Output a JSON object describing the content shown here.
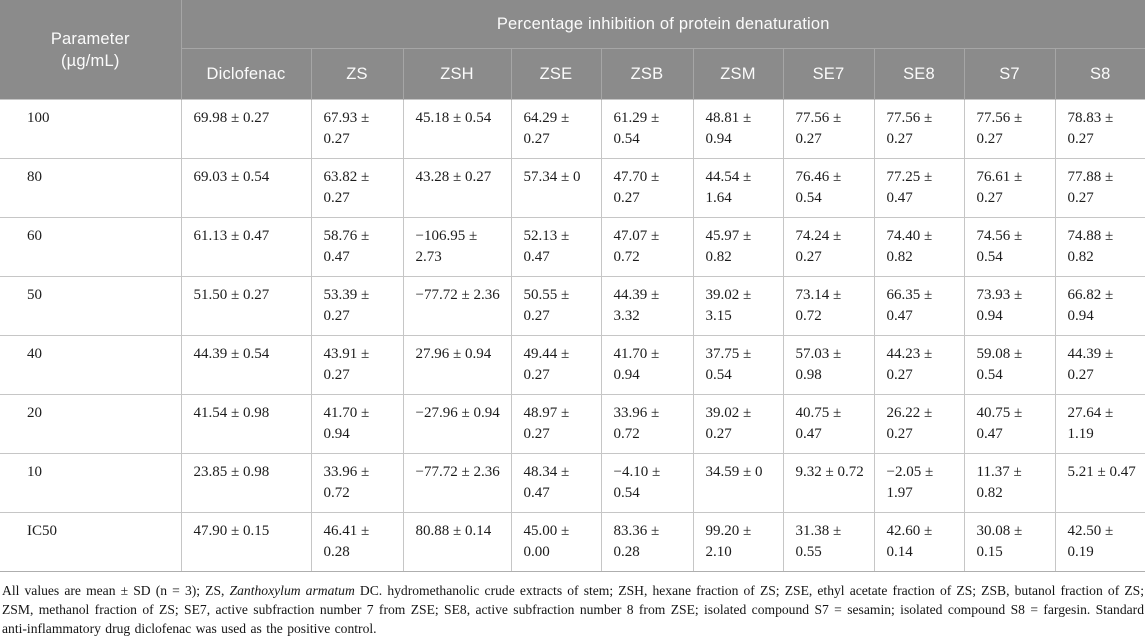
{
  "table": {
    "param_header_line1": "Parameter",
    "param_header_line2": "(µg/mL)",
    "span_header": "Percentage inhibition of protein denaturation",
    "columns": [
      "Diclofenac",
      "ZS",
      "ZSH",
      "ZSE",
      "ZSB",
      "ZSM",
      "SE7",
      "SE8",
      "S7",
      "S8"
    ],
    "rows": [
      {
        "label": "100",
        "values": [
          "69.98 ± 0.27",
          "67.93 ± 0.27",
          "45.18 ± 0.54",
          "64.29 ± 0.27",
          "61.29 ± 0.54",
          "48.81 ± 0.94",
          "77.56 ± 0.27",
          "77.56 ± 0.27",
          "77.56 ± 0.27",
          "78.83 ± 0.27"
        ]
      },
      {
        "label": "80",
        "values": [
          "69.03 ± 0.54",
          "63.82 ± 0.27",
          "43.28 ± 0.27",
          "57.34 ± 0",
          "47.70 ± 0.27",
          "44.54 ± 1.64",
          "76.46 ± 0.54",
          "77.25 ± 0.47",
          "76.61 ± 0.27",
          "77.88 ± 0.27"
        ]
      },
      {
        "label": "60",
        "values": [
          "61.13 ± 0.47",
          "58.76 ± 0.47",
          "−106.95 ± 2.73",
          "52.13 ± 0.47",
          "47.07 ± 0.72",
          "45.97 ± 0.82",
          "74.24 ± 0.27",
          "74.40 ± 0.82",
          "74.56 ± 0.54",
          "74.88 ± 0.82"
        ]
      },
      {
        "label": "50",
        "values": [
          "51.50 ± 0.27",
          "53.39 ± 0.27",
          "−77.72 ± 2.36",
          "50.55 ± 0.27",
          "44.39 ± 3.32",
          "39.02 ± 3.15",
          "73.14 ± 0.72",
          "66.35 ± 0.47",
          "73.93 ± 0.94",
          "66.82 ± 0.94"
        ]
      },
      {
        "label": "40",
        "values": [
          "44.39 ± 0.54",
          "43.91 ± 0.27",
          "27.96 ± 0.94",
          "49.44 ± 0.27",
          "41.70 ± 0.94",
          "37.75 ± 0.54",
          "57.03 ± 0.98",
          "44.23 ± 0.27",
          "59.08 ± 0.54",
          "44.39 ± 0.27"
        ]
      },
      {
        "label": "20",
        "values": [
          "41.54 ± 0.98",
          "41.70 ± 0.94",
          "−27.96 ± 0.94",
          "48.97 ± 0.27",
          "33.96 ± 0.72",
          "39.02 ± 0.27",
          "40.75 ± 0.47",
          "26.22 ± 0.27",
          "40.75 ± 0.47",
          "27.64 ± 1.19"
        ]
      },
      {
        "label": "10",
        "values": [
          "23.85 ± 0.98",
          "33.96 ± 0.72",
          "−77.72 ± 2.36",
          "48.34 ± 0.47",
          "−4.10 ± 0.54",
          "34.59 ± 0",
          "9.32 ± 0.72",
          "−2.05 ± 1.97",
          "11.37 ± 0.82",
          "5.21 ± 0.47"
        ]
      },
      {
        "label": "IC50",
        "values": [
          "47.90 ± 0.15",
          "46.41 ± 0.28",
          "80.88 ± 0.14",
          "45.00 ± 0.00",
          "83.36 ± 0.28",
          "99.20 ± 2.10",
          "31.38 ± 0.55",
          "42.60 ± 0.14",
          "30.08 ± 0.15",
          "42.50 ± 0.19"
        ]
      }
    ]
  },
  "footnote": {
    "part1": "All values are mean ± SD (n = 3); ZS, ",
    "italic": "Zanthoxylum armatum",
    "part2": " DC. hydromethanolic crude extracts of stem; ZSH, hexane fraction of ZS; ZSE, ethyl acetate fraction of ZS; ZSB, butanol fraction of ZS; ZSM, methanol fraction of ZS; SE7, active subfraction number 7 from ZSE; SE8, active subfraction number 8 from ZSE; isolated compound S7 = sesamin; isolated compound S8 = fargesin. Standard anti-inflammatory drug diclofenac was used as the positive control."
  },
  "colors": {
    "header_bg": "#8b8b8b",
    "header_text": "#fbfbfb",
    "cell_border": "#c6c6c6",
    "body_text": "#1c1c1c"
  }
}
